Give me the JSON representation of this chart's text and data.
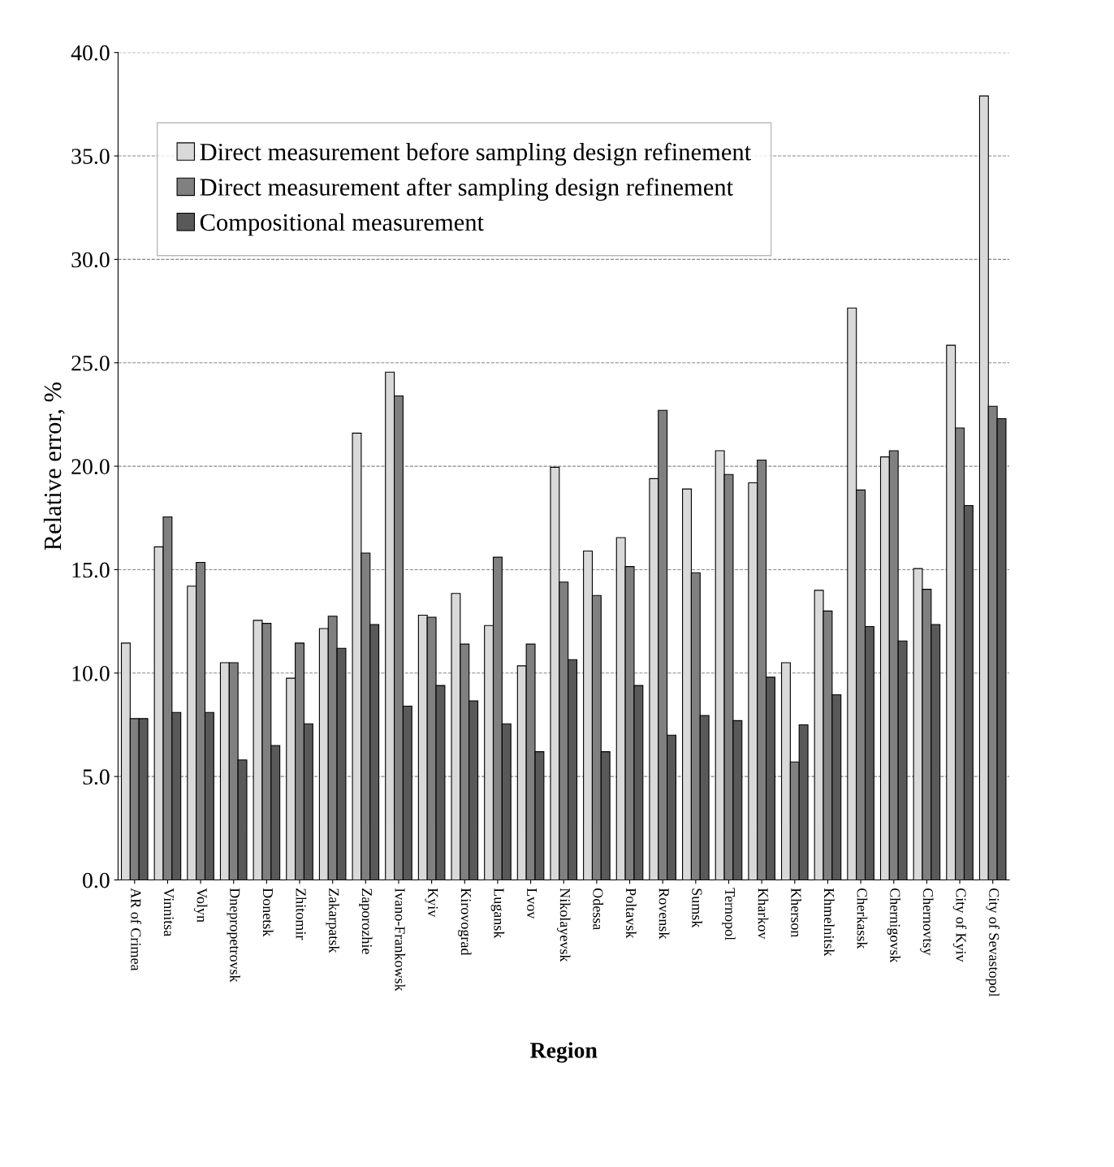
{
  "chart_data": {
    "type": "bar",
    "xlabel": "Region",
    "ylabel": "Relative error, %",
    "categories": [
      "AR of Crimea",
      "Vinnitsa",
      "Volyn",
      "Dnepropetrovsk",
      "Donetsk",
      "Zhitomir",
      "Zakarpatsk",
      "Zaporozhie",
      "Ivano-Frankowsk",
      "Kyiv",
      "Kirovograd",
      "Lugansk",
      "Lvov",
      "Nikolayevsk",
      "Odessa",
      "Poltavsk",
      "Rovensk",
      "Sumsk",
      "Ternopol",
      "Kharkov",
      "Kherson",
      "Khmelnitsk",
      "Cherkassk",
      "Chernigovsk",
      "Chernovtsy",
      "City of Kyiv",
      "City of Sevastopol"
    ],
    "series": [
      {
        "name": "Direct measurement before sampling design refinement",
        "color": "#d9d9d9",
        "values": [
          11.45,
          16.1,
          14.2,
          10.5,
          12.55,
          9.75,
          12.15,
          21.6,
          24.55,
          12.8,
          13.85,
          12.3,
          10.35,
          19.95,
          15.9,
          16.55,
          19.4,
          18.9,
          20.75,
          19.2,
          10.5,
          14.0,
          27.65,
          20.45,
          15.05,
          25.85,
          37.9
        ]
      },
      {
        "name": "Direct measurement after sampling design refinement",
        "color": "#808080",
        "values": [
          7.8,
          17.55,
          15.35,
          10.5,
          12.4,
          11.45,
          12.75,
          15.8,
          23.4,
          12.7,
          11.4,
          15.6,
          11.4,
          14.4,
          13.75,
          15.15,
          22.7,
          14.85,
          19.6,
          20.3,
          5.7,
          13.0,
          18.85,
          20.75,
          14.05,
          21.85,
          22.9
        ]
      },
      {
        "name": "Compositional measurement",
        "color": "#595959",
        "values": [
          7.8,
          8.1,
          8.1,
          5.8,
          6.5,
          7.55,
          11.2,
          12.35,
          8.4,
          9.4,
          8.65,
          7.55,
          6.2,
          10.65,
          6.2,
          9.4,
          7.0,
          7.95,
          7.7,
          9.8,
          7.5,
          8.95,
          12.25,
          11.55,
          12.35,
          18.1,
          22.3
        ]
      }
    ],
    "ylim": [
      0,
      40
    ],
    "yticks": [
      {
        "value": 0,
        "label": "0.0"
      },
      {
        "value": 5,
        "label": "5.0"
      },
      {
        "value": 10,
        "label": "10.0"
      },
      {
        "value": 15,
        "label": "15.0"
      },
      {
        "value": 20,
        "label": "20.0"
      },
      {
        "value": 25,
        "label": "25.0"
      },
      {
        "value": 30,
        "label": "30.0"
      },
      {
        "value": 35,
        "label": "35.0"
      },
      {
        "value": 40,
        "label": "40.0"
      }
    ],
    "grid": "y",
    "legend": "top left"
  }
}
